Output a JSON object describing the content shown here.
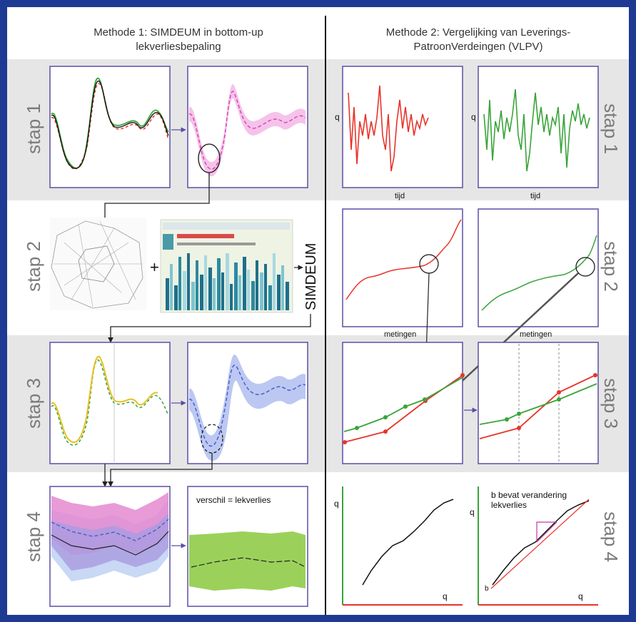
{
  "left_title": [
    "Methode 1: SIMDEUM in bottom-up",
    "lekverliesbepaling"
  ],
  "right_title": [
    "Methode 2: Vergelijking van Leverings-",
    "PatroonVerdeingen (VLPV)"
  ],
  "steps": [
    "stap 1",
    "stap 2",
    "stap 3",
    "stap 4"
  ],
  "simdeum_label": "SIMDEUM",
  "verschil_label": "verschil = lekverlies",
  "axis_tijd": "tijd",
  "axis_metingen": "metingen",
  "b_label": [
    "b bevat verandering",
    "lekverlies"
  ],
  "axis_symbol_q": "q",
  "colors": {
    "frame": "#1f3a93",
    "panel_border": "#5b4fa6",
    "red": "#e8342a",
    "green": "#3aa43a",
    "pink": "#e070c8",
    "blue": "#5a6fd8",
    "yellow": "#e8c020",
    "band": "#e6e6e6"
  }
}
